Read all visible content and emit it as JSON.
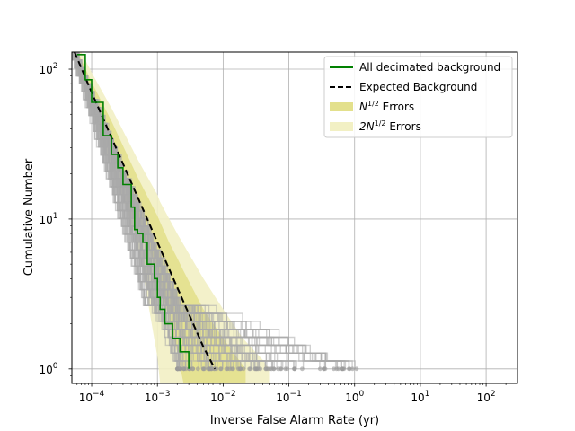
{
  "chart_data": {
    "type": "line",
    "xlabel": "Inverse False Alarm Rate (yr)",
    "ylabel": "Cumulative Number",
    "x_scale": "log",
    "y_scale": "log",
    "xlim": [
      5e-05,
      300
    ],
    "ylim": [
      0.8,
      130
    ],
    "grid": true,
    "x_ticks": [
      {
        "value": 0.0001,
        "base": "10",
        "exp": "−4"
      },
      {
        "value": 0.001,
        "base": "10",
        "exp": "−3"
      },
      {
        "value": 0.01,
        "base": "10",
        "exp": "−2"
      },
      {
        "value": 0.1,
        "base": "10",
        "exp": "−1"
      },
      {
        "value": 1,
        "base": "10",
        "exp": "0"
      },
      {
        "value": 10,
        "base": "10",
        "exp": "1"
      },
      {
        "value": 100,
        "base": "10",
        "exp": "2"
      }
    ],
    "y_ticks": [
      {
        "value": 1,
        "base": "10",
        "exp": "0"
      },
      {
        "value": 10,
        "base": "10",
        "exp": "1"
      },
      {
        "value": 100,
        "base": "10",
        "exp": "2"
      }
    ],
    "legend_position": "top-right",
    "legend": [
      {
        "key": "decimated",
        "label": "All decimated background",
        "sup": "",
        "suffix": "",
        "color": "#008000",
        "style": "line"
      },
      {
        "key": "expected",
        "label": "Expected Background",
        "sup": "",
        "suffix": "",
        "color": "#000000",
        "style": "dashed"
      },
      {
        "key": "err1",
        "label": "N",
        "sup": "1/2",
        "suffix": " Errors",
        "color": "#e3e08c",
        "style": "patch"
      },
      {
        "key": "err2",
        "label": "2N",
        "sup": "1/2",
        "suffix": " Errors",
        "color": "#f2f0c4",
        "style": "patch"
      }
    ],
    "series": [
      {
        "name": "Expected Background",
        "style": "dashed",
        "color": "#000000",
        "x": [
          5.5e-05,
          0.0001,
          0.0002,
          0.0005,
          0.001,
          0.002,
          0.005,
          0.0075
        ],
        "y": [
          130,
          70,
          35,
          14,
          7,
          3.5,
          1.4,
          1.0
        ]
      },
      {
        "name": "All decimated background",
        "style": "line",
        "color": "#008000",
        "x": [
          6e-05,
          8e-05,
          0.0001,
          0.00015,
          0.0002,
          0.00025,
          0.0003,
          0.0004,
          0.00045,
          0.0005,
          0.0006,
          0.0007,
          0.0009,
          0.001,
          0.0011,
          0.0013,
          0.0017,
          0.0022,
          0.003
        ],
        "y": [
          125,
          85,
          60,
          36,
          27,
          22,
          17,
          12,
          8.5,
          8,
          7,
          5,
          4,
          3,
          2.5,
          2,
          1.6,
          1.3,
          1.0
        ]
      }
    ],
    "bands": [
      {
        "name": "2N^1/2 Errors",
        "color": "#f2f0c4",
        "x": [
          5.5e-05,
          0.0001,
          0.0002,
          0.0005,
          0.001,
          0.0011,
          0.002,
          0.005,
          0.01,
          0.02,
          0.04,
          0.05
        ],
        "lower": [
          107,
          53,
          23,
          7,
          1.2,
          0.8,
          0.8,
          0.8,
          0.8,
          0.8,
          0.8,
          0.8
        ],
        "upper": [
          160,
          95,
          55,
          25,
          14.5,
          13,
          8,
          4,
          2.5,
          1.6,
          1.15,
          1.0
        ]
      },
      {
        "name": "N^1/2 Errors",
        "color": "#e3e08c",
        "x": [
          5.5e-05,
          0.0001,
          0.0002,
          0.0005,
          0.001,
          0.0015,
          0.002,
          0.0025,
          0.005,
          0.01,
          0.015,
          0.022
        ],
        "lower": [
          118,
          62,
          29,
          10.3,
          4.4,
          2.2,
          1.3,
          0.8,
          0.8,
          0.8,
          0.8,
          0.8
        ],
        "upper": [
          145,
          82,
          45,
          19,
          10.5,
          7,
          5.5,
          4.5,
          2.5,
          1.6,
          1.25,
          1.0
        ]
      }
    ],
    "background_trials": {
      "color": "#a9a9a9",
      "opacity": 0.55,
      "count": 90,
      "seed": 7,
      "lines_reach_y": 1,
      "x_at_y1_range": [
        0.002,
        1.3
      ],
      "x_at_y130_range": [
        4.8e-05,
        5.5e-05
      ]
    }
  }
}
